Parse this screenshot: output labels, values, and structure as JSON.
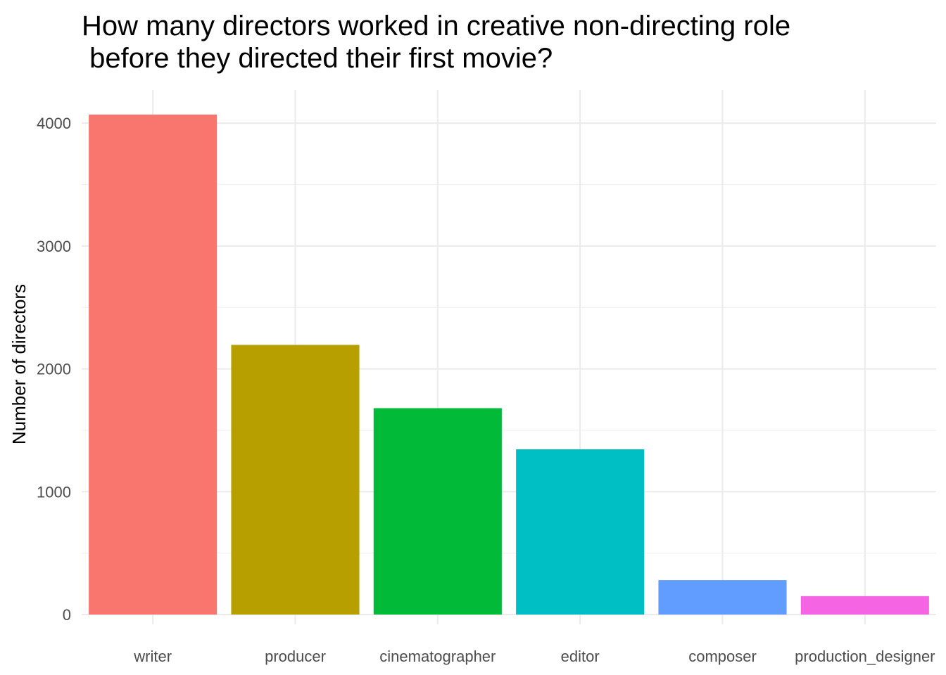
{
  "chart_data": {
    "type": "bar",
    "title_line1": "How many directors worked in creative non-directing role",
    "title_line2": " before they directed their first movie?",
    "xlabel": "",
    "ylabel": "Number of directors",
    "categories": [
      "writer",
      "producer",
      "cinematographer",
      "editor",
      "composer",
      "production_designer"
    ],
    "values": [
      4070,
      2195,
      1680,
      1345,
      280,
      150
    ],
    "colors": [
      "#F8766D",
      "#B79F00",
      "#00BA38",
      "#00BFC4",
      "#619CFF",
      "#F564E3"
    ],
    "ylim": [
      -80,
      4270
    ],
    "yticks": [
      0,
      1000,
      2000,
      3000,
      4000
    ],
    "grid": true,
    "legend": "none"
  }
}
